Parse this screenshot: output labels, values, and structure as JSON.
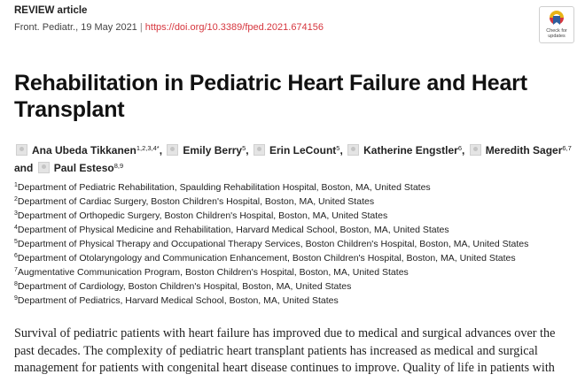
{
  "header": {
    "article_type": "REVIEW article",
    "journal_date": "Front. Pediatr., 19 May 2021",
    "separator": "|",
    "doi": "https://doi.org/10.3389/fped.2021.674156"
  },
  "badge": {
    "label_line1": "Check for",
    "label_line2": "updates"
  },
  "article": {
    "title": "Rehabilitation in Pediatric Heart Failure and Heart Transplant",
    "authors": [
      {
        "name": "Ana Ubeda Tikkanen",
        "sup": "1,2,3,4*"
      },
      {
        "name": "Emily Berry",
        "sup": "5"
      },
      {
        "name": "Erin LeCount",
        "sup": "5"
      },
      {
        "name": "Katherine Engstler",
        "sup": "6"
      },
      {
        "name": "Meredith Sager",
        "sup": "6,7"
      },
      {
        "name": "Paul Esteso",
        "sup": "8,9"
      }
    ],
    "author_sep": ",",
    "and_word": "and",
    "affiliations": [
      {
        "num": "1",
        "text": "Department of Pediatric Rehabilitation, Spaulding Rehabilitation Hospital, Boston, MA, United States"
      },
      {
        "num": "2",
        "text": "Department of Cardiac Surgery, Boston Children's Hospital, Boston, MA, United States"
      },
      {
        "num": "3",
        "text": "Department of Orthopedic Surgery, Boston Children's Hospital, Boston, MA, United States"
      },
      {
        "num": "4",
        "text": "Department of Physical Medicine and Rehabilitation, Harvard Medical School, Boston, MA, United States"
      },
      {
        "num": "5",
        "text": "Department of Physical Therapy and Occupational Therapy Services, Boston Children's Hospital, Boston, MA, United States"
      },
      {
        "num": "6",
        "text": "Department of Otolaryngology and Communication Enhancement, Boston Children's Hospital, Boston, MA, United States"
      },
      {
        "num": "7",
        "text": "Augmentative Communication Program, Boston Children's Hospital, Boston, MA, United States"
      },
      {
        "num": "8",
        "text": "Department of Cardiology, Boston Children's Hospital, Boston, MA, United States"
      },
      {
        "num": "9",
        "text": "Department of Pediatrics, Harvard Medical School, Boston, MA, United States"
      }
    ],
    "abstract_text": "Survival of pediatric patients with heart failure has improved due to medical and surgical advances over the past decades. The complexity of pediatric heart transplant patients has increased as medical and surgical management for patients with congenital heart disease continues to improve. Quality of life in patients with"
  }
}
